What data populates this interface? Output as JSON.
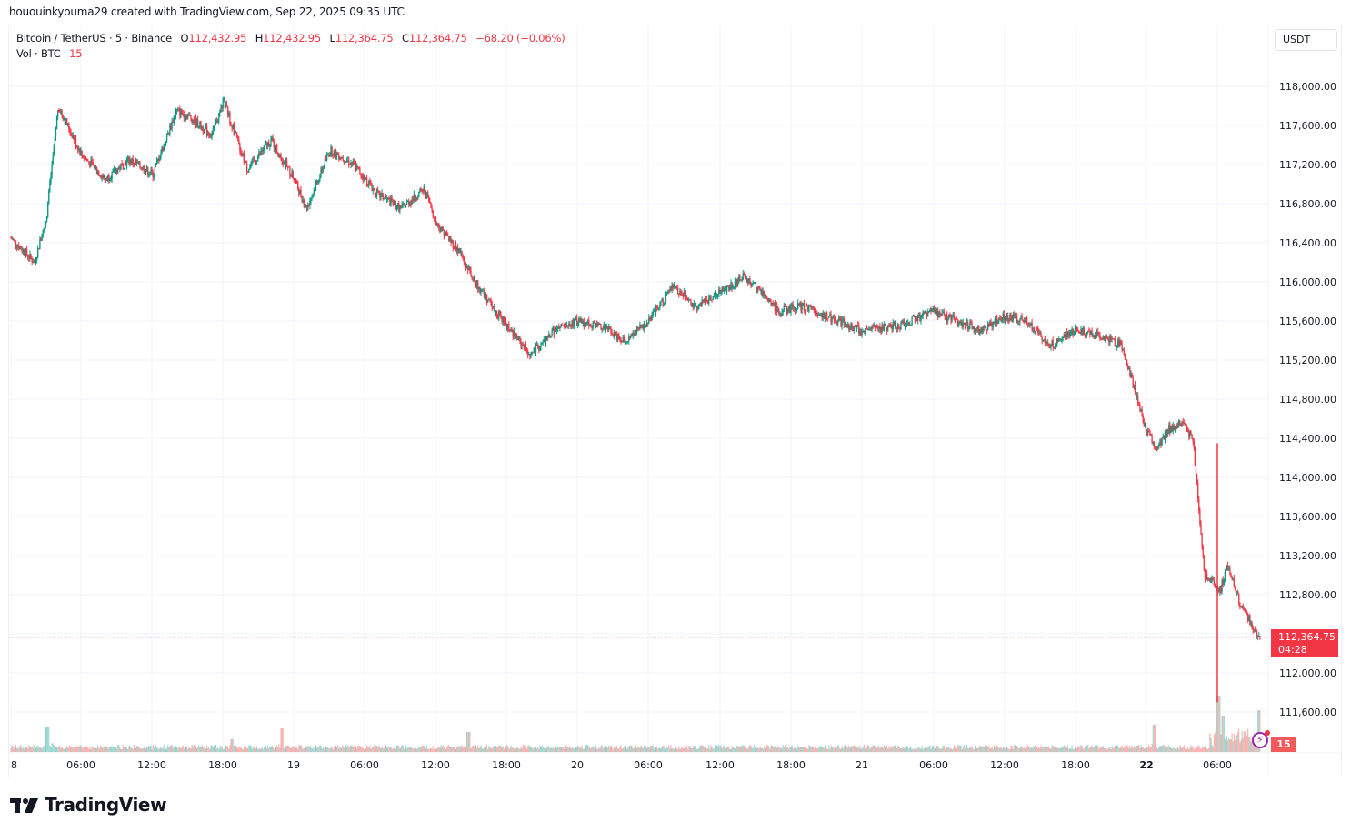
{
  "credit": "hououinkyouma29 created with TradingView.com, Sep 22, 2025 09:35 UTC",
  "legend": {
    "symbol": "Bitcoin / TetherUS · 5 · Binance",
    "o_label": "O",
    "o": "112,432.95",
    "h_label": "H",
    "h": "112,432.95",
    "l_label": "L",
    "l": "112,364.75",
    "c_label": "C",
    "c": "112,364.75",
    "change": "−68.20 (−0.06%)",
    "vol_label": "Vol · BTC",
    "vol": "15"
  },
  "currency_button": "USDT",
  "last_price": {
    "price": "112,364.75",
    "countdown": "04:28"
  },
  "volume_tag": "15",
  "logo_text": "TradingView",
  "colors": {
    "up": "#089981",
    "down": "#f23645",
    "vol_up": "#92d2cc",
    "vol_down": "#f7a9a7",
    "grid": "#f0f3fa",
    "last_price": "#f23645"
  },
  "chart_data": {
    "type": "line",
    "title": "Bitcoin / TetherUS · 5 · Binance",
    "subtype": "candlestick (5-minute)",
    "xlabel": "",
    "ylabel": "USDT",
    "ylim": [
      111300,
      118300
    ],
    "grid": true,
    "y_ticks": [
      "118,000.00",
      "117,600.00",
      "117,200.00",
      "116,800.00",
      "116,400.00",
      "116,000.00",
      "115,600.00",
      "115,200.00",
      "114,800.00",
      "114,400.00",
      "114,000.00",
      "113,600.00",
      "113,200.00",
      "112,800.00",
      "112,400.00",
      "112,000.00",
      "111,600.00"
    ],
    "x_ticks": [
      "8",
      "06:00",
      "12:00",
      "18:00",
      "19",
      "06:00",
      "12:00",
      "18:00",
      "20",
      "06:00",
      "12:00",
      "18:00",
      "21",
      "06:00",
      "12:00",
      "18:00",
      "22",
      "06:00"
    ],
    "x": [
      "18 00:00",
      "18 02:00",
      "18 03:00",
      "18 04:00",
      "18 06:00",
      "18 08:00",
      "18 10:00",
      "18 12:00",
      "18 14:00",
      "18 15:00",
      "18 17:00",
      "18 18:00",
      "18 20:00",
      "18 22:00",
      "19 00:00",
      "19 01:00",
      "19 03:00",
      "19 05:00",
      "19 07:00",
      "19 09:00",
      "19 11:00",
      "19 12:00",
      "19 14:00",
      "19 15:00",
      "19 17:00",
      "19 19:00",
      "19 20:00",
      "19 22:00",
      "20 00:00",
      "20 02:00",
      "20 04:00",
      "20 06:00",
      "20 08:00",
      "20 10:00",
      "20 12:00",
      "20 14:00",
      "20 15:00",
      "20 17:00",
      "20 19:00",
      "20 21:00",
      "21 00:00",
      "21 03:00",
      "21 06:00",
      "21 08:00",
      "21 10:00",
      "21 12:00",
      "21 14:00",
      "21 16:00",
      "21 18:00",
      "21 20:00",
      "21 22:00",
      "22 00:00",
      "22 01:00",
      "22 02:00",
      "22 03:00",
      "22 04:00",
      "22 05:00",
      "22 05:55",
      "22 06:10",
      "22 07:00",
      "22 08:00",
      "22 09:00",
      "22 09:35"
    ],
    "series": [
      {
        "name": "BTC/USDT close",
        "values": [
          116450,
          116200,
          116650,
          117800,
          117300,
          117050,
          117250,
          117100,
          117750,
          117700,
          117500,
          117850,
          117150,
          117450,
          117050,
          116750,
          117350,
          117200,
          116900,
          116750,
          116950,
          116600,
          116300,
          116050,
          115700,
          115400,
          115250,
          115500,
          115600,
          115550,
          115400,
          115600,
          115950,
          115750,
          115900,
          116050,
          115950,
          115700,
          115750,
          115650,
          115500,
          115550,
          115700,
          115600,
          115500,
          115650,
          115600,
          115350,
          115500,
          115450,
          115350,
          114500,
          114300,
          114500,
          114550,
          114400,
          113000,
          112900,
          112800,
          113100,
          112700,
          112500,
          112364.75
        ]
      },
      {
        "name": "Volume (BTC)",
        "note": "spikes near 18 03:00, 19 00:00, 19 14:00, 22 01:00 and 22 06:00"
      }
    ],
    "last_value": 112364.75,
    "session_low": 111900,
    "session_high": 117900
  }
}
